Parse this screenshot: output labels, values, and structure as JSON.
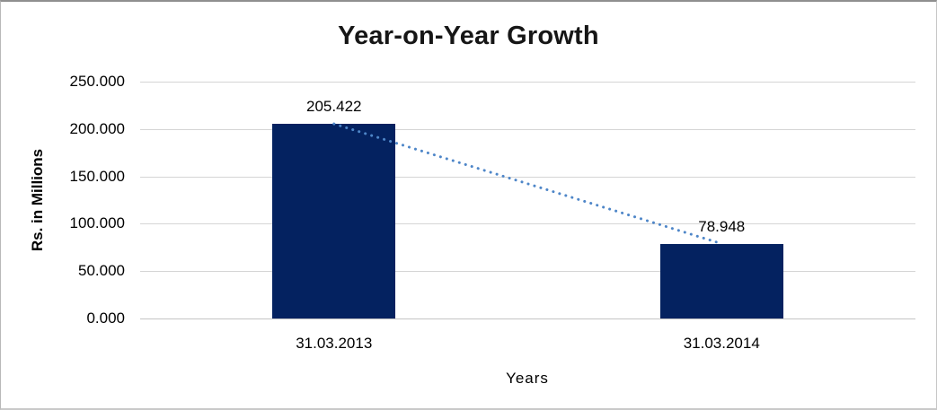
{
  "frame": {
    "background": "#FFFFFF",
    "border_color": "#8F8F8F"
  },
  "chart_data": {
    "type": "bar",
    "title": "Year-on-Year Growth",
    "xlabel": "Years",
    "ylabel": "Rs. in Millions",
    "categories": [
      "31.03.2013",
      "31.03.2014"
    ],
    "values": [
      205.422,
      78.948
    ],
    "data_labels": [
      "205.422",
      "78.948"
    ],
    "ylim": [
      0,
      250
    ],
    "yticks": [
      {
        "value": 250,
        "label": "250.000"
      },
      {
        "value": 200,
        "label": "200.000"
      },
      {
        "value": 150,
        "label": "150.000"
      },
      {
        "value": 100,
        "label": "100.000"
      },
      {
        "value": 50,
        "label": "50.000"
      },
      {
        "value": 0,
        "label": "0.000"
      }
    ],
    "grid": true,
    "legend": "none",
    "trendline": {
      "style": "dotted",
      "connects": "bar-top-centers",
      "from_value": 205.422,
      "to_value": 78.948
    },
    "colors": {
      "bar": "#042260",
      "trendline": "#4E86C8",
      "gridline": "#D5D5D5",
      "axis_line": "#C4C4C4",
      "text": "#000000"
    }
  }
}
